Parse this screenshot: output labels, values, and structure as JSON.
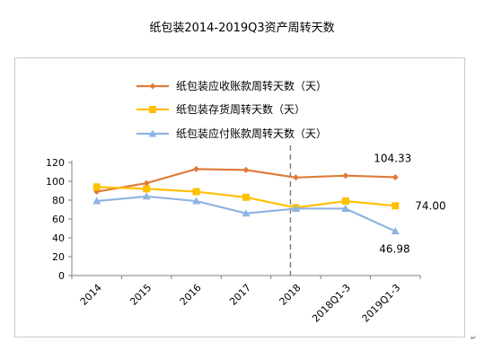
{
  "chart_data": {
    "type": "line",
    "title": "纸包装2014-2019Q3资产周转天数",
    "categories": [
      "2014",
      "2015",
      "2016",
      "2017",
      "2018",
      "2018Q1-3",
      "2019Q1-3"
    ],
    "ylim": [
      0,
      120
    ],
    "yticks": [
      0,
      20,
      40,
      60,
      80,
      100,
      120
    ],
    "grid": false,
    "legend": "top-left",
    "divider_after_category": "2018",
    "series": [
      {
        "name": "纸包装应收账款周转天数（天）",
        "color": "#E07B39",
        "marker": "diamond",
        "values": [
          89,
          98,
          113,
          112,
          104,
          106,
          104.33
        ]
      },
      {
        "name": "纸包装存货周转天数（天）",
        "color": "#FFC000",
        "marker": "square",
        "values": [
          94,
          92,
          89,
          83,
          72,
          79,
          74.0
        ]
      },
      {
        "name": "纸包装应付账款周转天数（天）",
        "color": "#8EB4E3",
        "marker": "triangle",
        "values": [
          79,
          84,
          79,
          66,
          71,
          71,
          46.98
        ]
      }
    ],
    "data_labels": [
      {
        "series": 0,
        "index": 6,
        "text": "104.33"
      },
      {
        "series": 1,
        "index": 6,
        "text": "74.00"
      },
      {
        "series": 2,
        "index": 6,
        "text": "46.98"
      }
    ]
  }
}
